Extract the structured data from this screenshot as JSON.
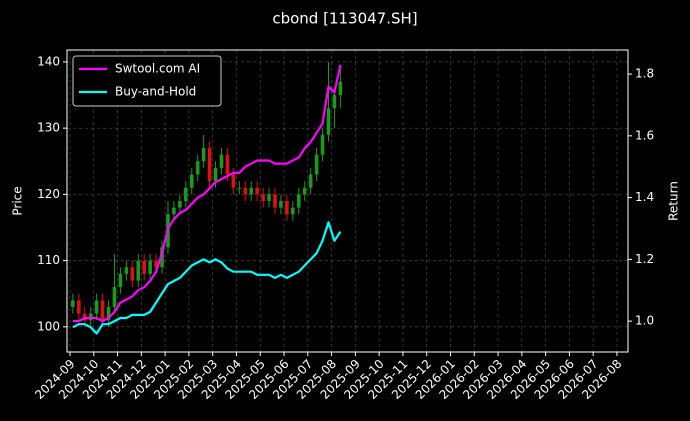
{
  "chart_data": {
    "type": "candlestick",
    "title": "cbond [113047.SH]",
    "ylabel": "Price",
    "y2label": "Return",
    "x": [
      "2024-09",
      "2024-09",
      "2024-09",
      "2024-09",
      "2024-10",
      "2024-10",
      "2024-10",
      "2024-10",
      "2024-11",
      "2024-11",
      "2024-11",
      "2024-11",
      "2024-12",
      "2024-12",
      "2024-12",
      "2024-12",
      "2025-01",
      "2025-01",
      "2025-01",
      "2025-01",
      "2025-02",
      "2025-02",
      "2025-02",
      "2025-02",
      "2025-03",
      "2025-03",
      "2025-03",
      "2025-03",
      "2025-04",
      "2025-04",
      "2025-04",
      "2025-04",
      "2025-05",
      "2025-05",
      "2025-05",
      "2025-05",
      "2025-06",
      "2025-06",
      "2025-06",
      "2025-06",
      "2025-07",
      "2025-07",
      "2025-07",
      "2025-07",
      "2025-08",
      "2025-08"
    ],
    "open": [
      103,
      104,
      102,
      101,
      102,
      104,
      101,
      103,
      106,
      108,
      109,
      107,
      110,
      108,
      110,
      109,
      112,
      117,
      118,
      119,
      121,
      123,
      125,
      127,
      122,
      124,
      126,
      123,
      121,
      121,
      120,
      121,
      120,
      119,
      120,
      118,
      119,
      117,
      118,
      120,
      121,
      123,
      126,
      129,
      133,
      135
    ],
    "high": [
      105,
      105,
      103,
      103,
      105,
      105,
      104,
      111,
      109,
      110,
      110,
      111,
      111,
      111,
      111,
      113,
      119,
      119,
      120,
      122,
      124,
      126,
      129,
      128,
      125,
      127,
      127,
      124,
      122,
      122,
      122,
      122,
      121,
      121,
      121,
      120,
      120,
      119,
      121,
      122,
      124,
      127,
      130,
      140,
      136,
      139
    ],
    "low": [
      102,
      101,
      100,
      100,
      101,
      100,
      100,
      102,
      105,
      107,
      106,
      106,
      107,
      107,
      108,
      108,
      111,
      116,
      117,
      118,
      120,
      122,
      124,
      121,
      121,
      123,
      122,
      120,
      120,
      119,
      119,
      119,
      118,
      118,
      117,
      117,
      116,
      116,
      117,
      119,
      120,
      122,
      125,
      128,
      130,
      133
    ],
    "close": [
      104,
      102,
      101,
      102,
      104,
      101,
      103,
      106,
      108,
      109,
      107,
      110,
      108,
      110,
      109,
      112,
      117,
      118,
      119,
      121,
      123,
      125,
      127,
      122,
      124,
      126,
      123,
      121,
      121,
      120,
      121,
      120,
      119,
      120,
      118,
      119,
      117,
      118,
      120,
      121,
      123,
      126,
      129,
      133,
      135,
      137
    ],
    "up_color": "#1a9c1a",
    "down_color": "#e01010",
    "series": [
      {
        "name": "Swtool.com AI",
        "color": "#ff00ff",
        "axis": "y2",
        "values": [
          1.0,
          1.0,
          1.01,
          1.01,
          1.01,
          1.0,
          1.01,
          1.03,
          1.06,
          1.07,
          1.08,
          1.1,
          1.11,
          1.13,
          1.16,
          1.22,
          1.3,
          1.33,
          1.35,
          1.36,
          1.38,
          1.4,
          1.41,
          1.43,
          1.45,
          1.46,
          1.47,
          1.48,
          1.48,
          1.5,
          1.51,
          1.52,
          1.52,
          1.52,
          1.51,
          1.51,
          1.51,
          1.52,
          1.53,
          1.56,
          1.58,
          1.61,
          1.64,
          1.76,
          1.74,
          1.83
        ]
      },
      {
        "name": "Buy-and-Hold",
        "color": "#00ffff",
        "axis": "y2",
        "values": [
          0.98,
          0.99,
          0.99,
          0.98,
          0.96,
          0.99,
          0.99,
          1.0,
          1.01,
          1.01,
          1.02,
          1.02,
          1.02,
          1.03,
          1.06,
          1.09,
          1.12,
          1.13,
          1.14,
          1.16,
          1.18,
          1.19,
          1.2,
          1.19,
          1.2,
          1.19,
          1.17,
          1.16,
          1.16,
          1.16,
          1.16,
          1.15,
          1.15,
          1.15,
          1.14,
          1.15,
          1.14,
          1.15,
          1.16,
          1.18,
          1.2,
          1.22,
          1.26,
          1.32,
          1.26,
          1.29
        ]
      }
    ],
    "xticks": [
      "2024-09",
      "2024-10",
      "2024-11",
      "2024-12",
      "2025-01",
      "2025-02",
      "2025-03",
      "2025-04",
      "2025-05",
      "2025-06",
      "2025-07",
      "2025-08",
      "2025-09",
      "2025-10",
      "2025-11",
      "2025-12",
      "2026-01",
      "2026-02",
      "2026-03",
      "2026-04",
      "2026-05",
      "2026-06",
      "2026-07",
      "2026-08"
    ],
    "ylim": [
      96.2,
      141.8
    ],
    "yticks": [
      100,
      110,
      120,
      130,
      140
    ],
    "y2lim": [
      0.9,
      1.878
    ],
    "y2ticks": [
      {
        "value": 1.0,
        "label": "1.0"
      },
      1.2,
      1.4,
      1.6,
      1.8
    ],
    "grid": true,
    "legend": "upper-left"
  }
}
